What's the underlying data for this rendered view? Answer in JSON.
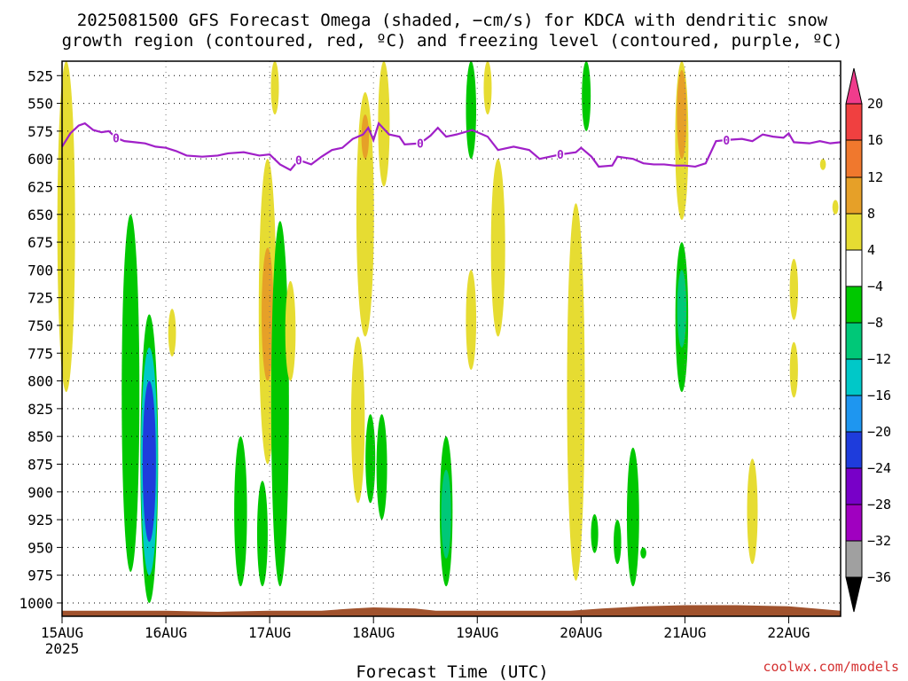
{
  "title": {
    "line1": "2025081500 GFS Forecast Omega (shaded, −cm/s) for KDCA with dendritic snow",
    "line2": "growth region (contoured, red, ºC) and freezing level (contoured, purple, ºC)"
  },
  "credit": "coolwx.com/models",
  "colors": {
    "freezing_level": "#a020c8",
    "terrain": "#a0522d",
    "dendritic": "#e03030"
  },
  "chart_data": {
    "type": "heatmap",
    "title": "2025081500 GFS Forecast Omega (shaded, −cm/s) for KDCA with dendritic snow growth region (contoured, red, ºC) and freezing level (contoured, purple, ºC)",
    "xlabel": "Forecast Time (UTC)",
    "ylabel": "",
    "x_range_days": [
      0,
      7.5
    ],
    "ylim": [
      1012,
      512
    ],
    "y_ticks": [
      525,
      550,
      575,
      600,
      625,
      650,
      675,
      700,
      725,
      750,
      775,
      800,
      825,
      850,
      875,
      900,
      925,
      950,
      975,
      1000
    ],
    "x_ticks": [
      {
        "day": 0,
        "label": "15AUG",
        "sublabel": "2025"
      },
      {
        "day": 1,
        "label": "16AUG",
        "sublabel": ""
      },
      {
        "day": 2,
        "label": "17AUG",
        "sublabel": ""
      },
      {
        "day": 3,
        "label": "18AUG",
        "sublabel": ""
      },
      {
        "day": 4,
        "label": "19AUG",
        "sublabel": ""
      },
      {
        "day": 5,
        "label": "20AUG",
        "sublabel": ""
      },
      {
        "day": 6,
        "label": "21AUG",
        "sublabel": ""
      },
      {
        "day": 7,
        "label": "22AUG",
        "sublabel": ""
      }
    ],
    "grid": true,
    "colorbar": {
      "labels": [
        "20",
        "16",
        "12",
        "8",
        "4",
        "−4",
        "−8",
        "−12",
        "−16",
        "−20",
        "−24",
        "−28",
        "−32",
        "−36"
      ],
      "colors": [
        "#f03c8c",
        "#f04040",
        "#f0782d",
        "#e6a028",
        "#e6dc32",
        "#ffffff",
        "#00c800",
        "#00c878",
        "#00c8c8",
        "#1e96f0",
        "#1e3cdc",
        "#7800c8",
        "#a000c0",
        "#a0a0a0",
        "#000000"
      ]
    },
    "freezing_level_label": "0",
    "freezing_level_hpa": [
      [
        0.0,
        589
      ],
      [
        0.08,
        577
      ],
      [
        0.16,
        570
      ],
      [
        0.22,
        568
      ],
      [
        0.3,
        574
      ],
      [
        0.38,
        576
      ],
      [
        0.45,
        575
      ],
      [
        0.52,
        581
      ],
      [
        0.6,
        584
      ],
      [
        0.7,
        585
      ],
      [
        0.8,
        586
      ],
      [
        0.9,
        589
      ],
      [
        1.0,
        590
      ],
      [
        1.1,
        593
      ],
      [
        1.2,
        597
      ],
      [
        1.35,
        598
      ],
      [
        1.5,
        597
      ],
      [
        1.6,
        595
      ],
      [
        1.75,
        594
      ],
      [
        1.9,
        597
      ],
      [
        2.0,
        596
      ],
      [
        2.1,
        605
      ],
      [
        2.2,
        610
      ],
      [
        2.28,
        601
      ],
      [
        2.4,
        605
      ],
      [
        2.5,
        598
      ],
      [
        2.6,
        592
      ],
      [
        2.7,
        590
      ],
      [
        2.8,
        582
      ],
      [
        2.9,
        578
      ],
      [
        2.95,
        572
      ],
      [
        3.0,
        583
      ],
      [
        3.05,
        568
      ],
      [
        3.15,
        578
      ],
      [
        3.25,
        580
      ],
      [
        3.3,
        587
      ],
      [
        3.45,
        586
      ],
      [
        3.55,
        579
      ],
      [
        3.62,
        572
      ],
      [
        3.7,
        580
      ],
      [
        3.8,
        578
      ],
      [
        3.95,
        574
      ],
      [
        4.1,
        580
      ],
      [
        4.2,
        592
      ],
      [
        4.35,
        589
      ],
      [
        4.5,
        592
      ],
      [
        4.6,
        600
      ],
      [
        4.7,
        598
      ],
      [
        4.8,
        596
      ],
      [
        4.95,
        594
      ],
      [
        5.0,
        590
      ],
      [
        5.1,
        598
      ],
      [
        5.17,
        607
      ],
      [
        5.3,
        606
      ],
      [
        5.35,
        598
      ],
      [
        5.5,
        600
      ],
      [
        5.6,
        604
      ],
      [
        5.7,
        605
      ],
      [
        5.8,
        605
      ],
      [
        5.9,
        606
      ],
      [
        6.0,
        606
      ],
      [
        6.1,
        607
      ],
      [
        6.2,
        604
      ],
      [
        6.3,
        584
      ],
      [
        6.4,
        583
      ],
      [
        6.55,
        582
      ],
      [
        6.65,
        584
      ],
      [
        6.75,
        578
      ],
      [
        6.85,
        580
      ],
      [
        6.95,
        581
      ],
      [
        7.0,
        577
      ],
      [
        7.05,
        585
      ],
      [
        7.2,
        586
      ],
      [
        7.3,
        584
      ],
      [
        7.4,
        586
      ],
      [
        7.5,
        585
      ]
    ],
    "omega_shaded_regions": [
      {
        "day": 0.04,
        "p_top": 512,
        "p_bot": 810,
        "color": "#e6dc32"
      },
      {
        "day": 0.66,
        "p_top": 650,
        "p_bot": 972,
        "color": "#00c800"
      },
      {
        "day": 0.84,
        "p_top": 740,
        "p_bot": 1000,
        "color": "#00c800"
      },
      {
        "day": 0.84,
        "p_top": 770,
        "p_bot": 975,
        "color": "#00c8c8"
      },
      {
        "day": 0.84,
        "p_top": 800,
        "p_bot": 945,
        "color": "#1e3cdc"
      },
      {
        "day": 1.06,
        "p_top": 735,
        "p_bot": 778,
        "color": "#e6dc32"
      },
      {
        "day": 1.72,
        "p_top": 850,
        "p_bot": 985,
        "color": "#00c800"
      },
      {
        "day": 1.93,
        "p_top": 890,
        "p_bot": 985,
        "color": "#00c800"
      },
      {
        "day": 1.98,
        "p_top": 600,
        "p_bot": 875,
        "color": "#e6dc32"
      },
      {
        "day": 1.98,
        "p_top": 680,
        "p_bot": 800,
        "color": "#e6a028"
      },
      {
        "day": 2.05,
        "p_top": 512,
        "p_bot": 560,
        "color": "#e6dc32"
      },
      {
        "day": 2.1,
        "p_top": 656,
        "p_bot": 985,
        "color": "#00c800"
      },
      {
        "day": 2.2,
        "p_top": 710,
        "p_bot": 800,
        "color": "#e6dc32"
      },
      {
        "day": 2.85,
        "p_top": 760,
        "p_bot": 910,
        "color": "#e6dc32"
      },
      {
        "day": 2.92,
        "p_top": 540,
        "p_bot": 760,
        "color": "#e6dc32"
      },
      {
        "day": 2.92,
        "p_top": 560,
        "p_bot": 600,
        "color": "#e6a028"
      },
      {
        "day": 2.97,
        "p_top": 830,
        "p_bot": 910,
        "color": "#00c800"
      },
      {
        "day": 3.08,
        "p_top": 830,
        "p_bot": 925,
        "color": "#00c800"
      },
      {
        "day": 3.1,
        "p_top": 512,
        "p_bot": 625,
        "color": "#e6dc32"
      },
      {
        "day": 3.7,
        "p_top": 850,
        "p_bot": 985,
        "color": "#00c800"
      },
      {
        "day": 3.7,
        "p_top": 880,
        "p_bot": 960,
        "color": "#00c878"
      },
      {
        "day": 3.94,
        "p_top": 512,
        "p_bot": 600,
        "color": "#00c800"
      },
      {
        "day": 3.94,
        "p_top": 700,
        "p_bot": 790,
        "color": "#e6dc32"
      },
      {
        "day": 4.1,
        "p_top": 512,
        "p_bot": 560,
        "color": "#e6dc32"
      },
      {
        "day": 4.2,
        "p_top": 600,
        "p_bot": 760,
        "color": "#e6dc32"
      },
      {
        "day": 4.95,
        "p_top": 640,
        "p_bot": 980,
        "color": "#e6dc32"
      },
      {
        "day": 5.05,
        "p_top": 512,
        "p_bot": 575,
        "color": "#00c800"
      },
      {
        "day": 5.13,
        "p_top": 920,
        "p_bot": 955,
        "color": "#00c800"
      },
      {
        "day": 5.35,
        "p_top": 925,
        "p_bot": 965,
        "color": "#00c800"
      },
      {
        "day": 5.5,
        "p_top": 860,
        "p_bot": 985,
        "color": "#00c800"
      },
      {
        "day": 5.6,
        "p_top": 950,
        "p_bot": 960,
        "color": "#00c800"
      },
      {
        "day": 5.97,
        "p_top": 512,
        "p_bot": 655,
        "color": "#e6dc32"
      },
      {
        "day": 5.97,
        "p_top": 520,
        "p_bot": 600,
        "color": "#e6a028"
      },
      {
        "day": 5.97,
        "p_top": 675,
        "p_bot": 810,
        "color": "#00c800"
      },
      {
        "day": 5.97,
        "p_top": 700,
        "p_bot": 770,
        "color": "#00c878"
      },
      {
        "day": 6.65,
        "p_top": 870,
        "p_bot": 965,
        "color": "#e6dc32"
      },
      {
        "day": 7.05,
        "p_top": 690,
        "p_bot": 745,
        "color": "#e6dc32"
      },
      {
        "day": 7.05,
        "p_top": 765,
        "p_bot": 815,
        "color": "#e6dc32"
      },
      {
        "day": 7.33,
        "p_top": 600,
        "p_bot": 610,
        "color": "#e6dc32"
      },
      {
        "day": 7.45,
        "p_top": 637,
        "p_bot": 650,
        "color": "#e6dc32"
      }
    ],
    "terrain_surface_hpa": [
      [
        0.0,
        1007
      ],
      [
        1.0,
        1007
      ],
      [
        1.5,
        1008
      ],
      [
        2.0,
        1007
      ],
      [
        2.5,
        1007
      ],
      [
        2.8,
        1005
      ],
      [
        3.0,
        1004
      ],
      [
        3.4,
        1005
      ],
      [
        3.6,
        1007
      ],
      [
        4.0,
        1007
      ],
      [
        4.5,
        1007
      ],
      [
        4.9,
        1007
      ],
      [
        5.2,
        1005
      ],
      [
        5.6,
        1003
      ],
      [
        6.0,
        1002
      ],
      [
        6.5,
        1002
      ],
      [
        7.0,
        1003
      ],
      [
        7.5,
        1007
      ]
    ]
  }
}
